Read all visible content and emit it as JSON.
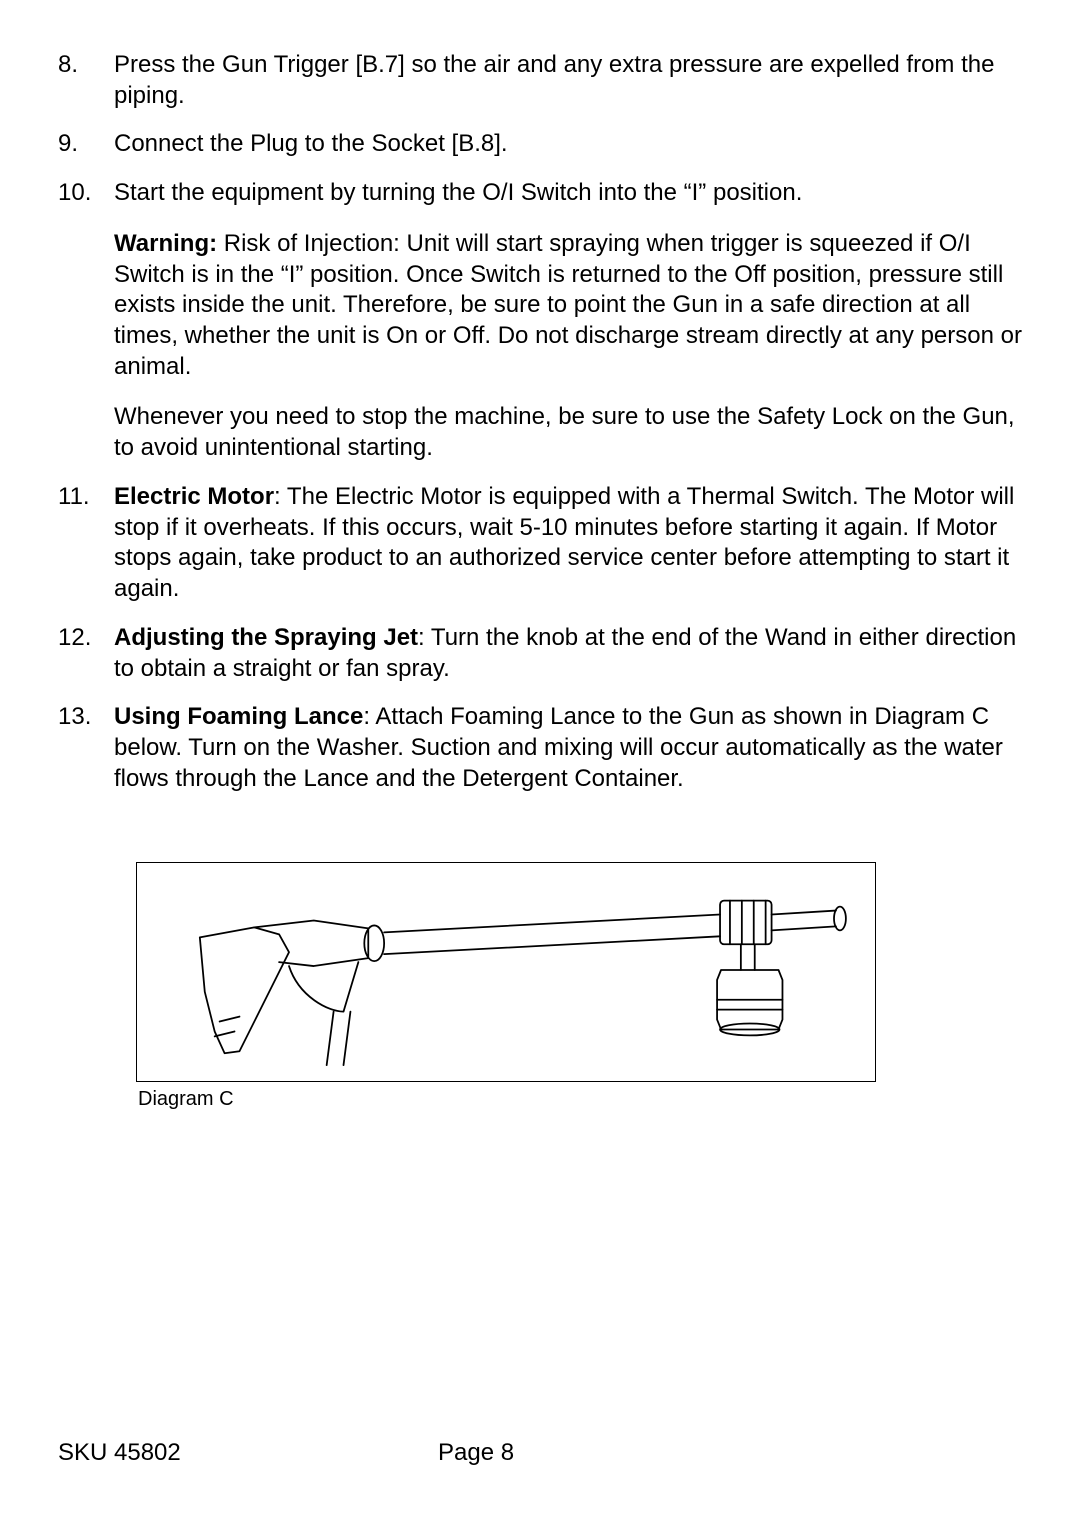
{
  "items": [
    {
      "num": "8.",
      "paras": [
        {
          "runs": [
            {
              "text": "Press the Gun Trigger [B.7] so the air and any extra pressure are expelled from the piping."
            }
          ]
        }
      ]
    },
    {
      "num": "9.",
      "paras": [
        {
          "runs": [
            {
              "text": "Connect the Plug to the Socket [B.8]."
            }
          ]
        }
      ]
    },
    {
      "num": "10.",
      "paras": [
        {
          "runs": [
            {
              "text": "Start the equipment by turning the O/I Switch into the “I” position."
            }
          ]
        },
        {
          "runs": [
            {
              "text": "Warning:",
              "bold": true
            },
            {
              "text": " Risk of Injection: Unit will start spraying when trigger is squeezed if O/I Switch is in the “I” position. Once Switch is returned to the Off position, pressure still exists inside the unit. Therefore, be sure to point the Gun in a safe direction at all times, whether the unit is On or Off. Do not discharge stream directly at any person or animal."
            }
          ]
        },
        {
          "runs": [
            {
              "text": "Whenever you need to stop the machine, be sure to use the Safety Lock on the Gun, to avoid unintentional starting."
            }
          ]
        }
      ]
    },
    {
      "num": "11.",
      "paras": [
        {
          "runs": [
            {
              "text": "Electric Motor",
              "bold": true
            },
            {
              "text": ": The Electric Motor is equipped with a Thermal Switch. The Motor will stop if it overheats. If this occurs, wait 5-10 minutes before starting it again. If Motor stops again, take product to an authorized service center before attempting to start it again."
            }
          ]
        }
      ]
    },
    {
      "num": "12.",
      "paras": [
        {
          "runs": [
            {
              "text": "Adjusting the Spraying Jet",
              "bold": true
            },
            {
              "text": ": Turn the knob at the end of the Wand in either direction to obtain a straight or fan spray."
            }
          ]
        }
      ]
    },
    {
      "num": "13.",
      "paras": [
        {
          "runs": [
            {
              "text": "Using Foaming Lance",
              "bold": true
            },
            {
              "text": ": Attach Foaming Lance to the Gun as shown in Diagram C below. Turn on the Washer. Suction and mixing will occur automatically as the water flows through the Lance and the Detergent Container."
            }
          ]
        }
      ]
    }
  ],
  "diagram": {
    "caption": "Diagram C"
  },
  "footer": {
    "sku": "SKU 45802",
    "page": "Page 8"
  }
}
